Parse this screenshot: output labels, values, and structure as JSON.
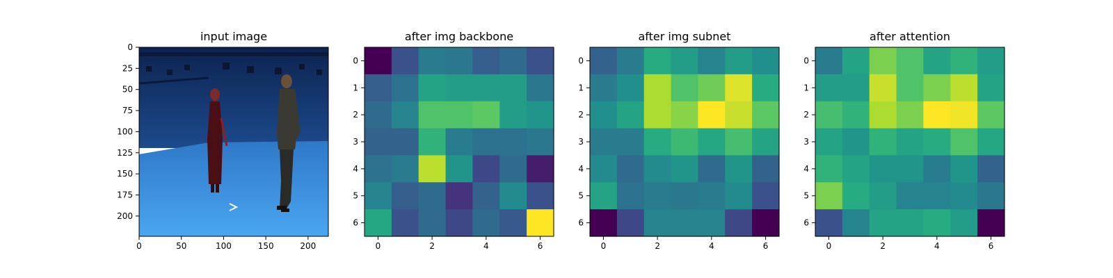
{
  "chart_data": [
    {
      "type": "image",
      "title": "input image",
      "xlim": [
        0,
        224
      ],
      "ylim": [
        224,
        0
      ],
      "xticks": [
        0,
        50,
        100,
        150,
        200
      ],
      "yticks": [
        0,
        25,
        50,
        75,
        100,
        125,
        150,
        175,
        200
      ]
    },
    {
      "type": "heatmap",
      "title": "after img backbone",
      "colormap": "viridis",
      "xticks": [
        0,
        2,
        4,
        6
      ],
      "yticks": [
        0,
        1,
        2,
        3,
        4,
        5,
        6
      ],
      "values": [
        [
          0.0,
          0.25,
          0.42,
          0.4,
          0.3,
          0.35,
          0.25
        ],
        [
          0.3,
          0.38,
          0.58,
          0.55,
          0.55,
          0.55,
          0.4
        ],
        [
          0.35,
          0.45,
          0.72,
          0.72,
          0.75,
          0.55,
          0.52
        ],
        [
          0.32,
          0.32,
          0.65,
          0.42,
          0.38,
          0.38,
          0.4
        ],
        [
          0.38,
          0.42,
          0.9,
          0.52,
          0.22,
          0.35,
          0.08
        ],
        [
          0.45,
          0.3,
          0.35,
          0.15,
          0.32,
          0.48,
          0.25
        ],
        [
          0.6,
          0.25,
          0.35,
          0.22,
          0.35,
          0.28,
          1.0
        ]
      ]
    },
    {
      "type": "heatmap",
      "title": "after img subnet",
      "colormap": "viridis",
      "xticks": [
        0,
        2,
        4,
        6
      ],
      "yticks": [
        0,
        1,
        2,
        3,
        4,
        5,
        6
      ],
      "values": [
        [
          0.32,
          0.42,
          0.62,
          0.55,
          0.45,
          0.55,
          0.5
        ],
        [
          0.42,
          0.5,
          0.88,
          0.72,
          0.78,
          0.95,
          0.62
        ],
        [
          0.5,
          0.58,
          0.88,
          0.82,
          1.0,
          0.92,
          0.75
        ],
        [
          0.42,
          0.42,
          0.62,
          0.68,
          0.6,
          0.7,
          0.58
        ],
        [
          0.48,
          0.35,
          0.48,
          0.52,
          0.35,
          0.52,
          0.32
        ],
        [
          0.58,
          0.38,
          0.42,
          0.4,
          0.42,
          0.48,
          0.25
        ],
        [
          0.0,
          0.22,
          0.45,
          0.45,
          0.45,
          0.22,
          0.0
        ]
      ]
    },
    {
      "type": "heatmap",
      "title": "after attention",
      "colormap": "viridis",
      "xticks": [
        0,
        2,
        4,
        6
      ],
      "yticks": [
        0,
        1,
        2,
        3,
        4,
        5,
        6
      ],
      "values": [
        [
          0.42,
          0.58,
          0.8,
          0.72,
          0.58,
          0.65,
          0.55
        ],
        [
          0.55,
          0.55,
          0.92,
          0.72,
          0.8,
          0.9,
          0.58
        ],
        [
          0.7,
          0.65,
          0.88,
          0.8,
          1.0,
          0.98,
          0.75
        ],
        [
          0.58,
          0.52,
          0.65,
          0.58,
          0.62,
          0.72,
          0.6
        ],
        [
          0.65,
          0.58,
          0.52,
          0.52,
          0.42,
          0.52,
          0.32
        ],
        [
          0.8,
          0.62,
          0.55,
          0.45,
          0.45,
          0.48,
          0.4
        ],
        [
          0.25,
          0.45,
          0.58,
          0.58,
          0.62,
          0.55,
          0.0
        ]
      ]
    }
  ],
  "colors": {
    "studio_backdrop": "#1a3f7a",
    "studio_floor": "#3d8fe0"
  }
}
